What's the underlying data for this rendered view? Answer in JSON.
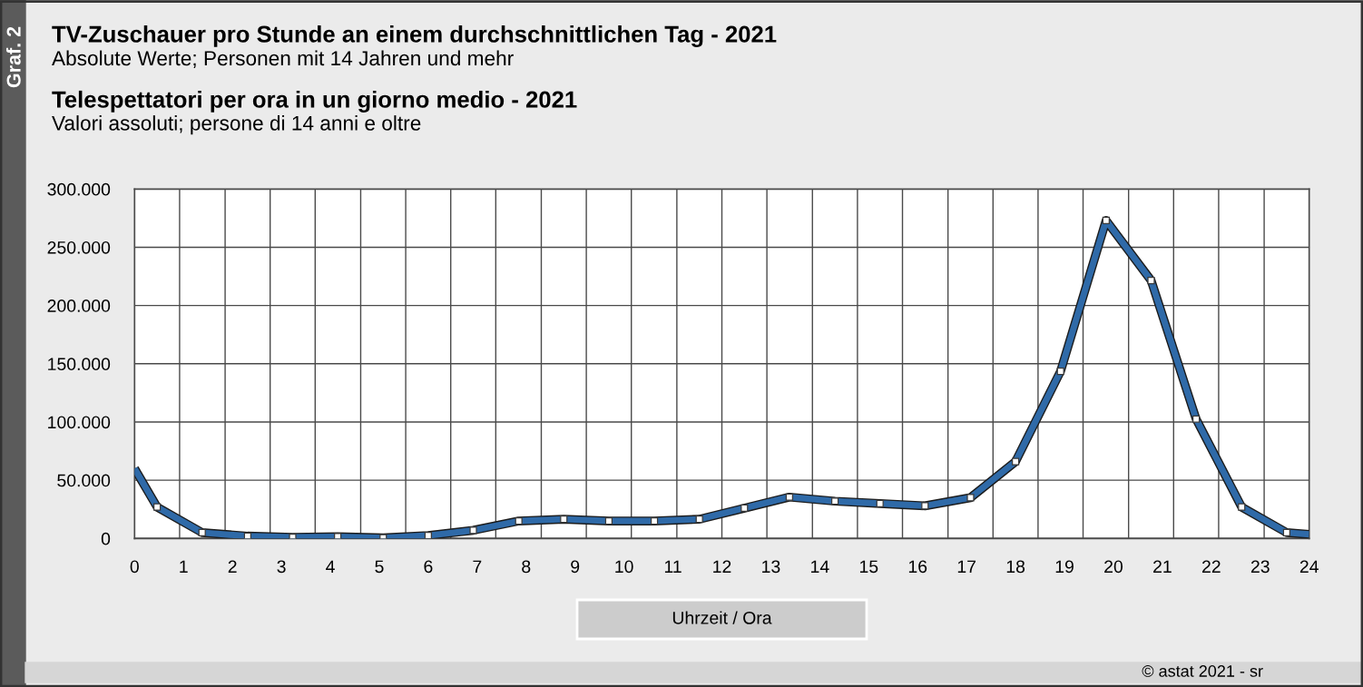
{
  "chart_data": {
    "type": "line",
    "title": "TV-Zuschauer pro Stunde an einem durchschnittlichen Tag - 2021",
    "subtitle": "Absolute Werte; Personen mit 14 Jahren und mehr",
    "xlabel": "Uhrzeit / Ora",
    "annotations": [
      "Graf. 2",
      "Telespettatori per ora in un giorno medio - 2021",
      "Valori assoluti; persone di 14 anni e oltre",
      "© astat 2021 - sr"
    ],
    "series": [
      {
        "color": "#2f6aa8",
        "x": [
          0,
          0.46,
          1.38,
          2.31,
          3.23,
          4.15,
          5.08,
          6.0,
          6.92,
          7.85,
          8.77,
          9.69,
          10.62,
          11.54,
          12.46,
          13.38,
          14.31,
          15.23,
          16.15,
          17.08,
          18.0,
          18.92,
          19.85,
          20.77,
          21.69,
          22.62,
          23.54,
          24
        ],
        "values": [
          60000,
          27000,
          5000,
          2000,
          1000,
          1500,
          500,
          2500,
          7000,
          15000,
          16500,
          15000,
          15000,
          16500,
          26000,
          35500,
          32000,
          30000,
          28000,
          35000,
          66000,
          143500,
          273000,
          221500,
          102500,
          27000,
          5000,
          3500
        ]
      }
    ],
    "xlim": [
      0,
      24
    ],
    "xticks": [
      0,
      {
        "value": 0.92,
        "label": null
      },
      1,
      {
        "value": 1.85,
        "label": null
      },
      2,
      {
        "value": 2.77,
        "label": null
      },
      3,
      {
        "value": 3.69,
        "label": null
      },
      4,
      {
        "value": 4.62,
        "label": null
      },
      5,
      {
        "value": 5.54,
        "label": null
      },
      6,
      {
        "value": 6.46,
        "label": null
      },
      7,
      {
        "value": 7.38,
        "label": null
      },
      8,
      {
        "value": 8.31,
        "label": null
      },
      9,
      {
        "value": 9.23,
        "label": null
      },
      10,
      {
        "value": 10.15,
        "label": null
      },
      11,
      {
        "value": 11.08,
        "label": null
      },
      12,
      {
        "value": 12,
        "label": null
      },
      {
        "value": 12.92,
        "label": null
      },
      13,
      {
        "value": 13.85,
        "label": null
      },
      14,
      {
        "value": 14.77,
        "label": null
      },
      15,
      {
        "value": 15.69,
        "label": null
      },
      16,
      {
        "value": 16.62,
        "label": null
      },
      17,
      {
        "value": 17.54,
        "label": null
      },
      18,
      {
        "value": 18.46,
        "label": null
      },
      19,
      {
        "value": 19.38,
        "label": null
      },
      20,
      {
        "value": 20.31,
        "label": null
      },
      21,
      {
        "value": 21.23,
        "label": null
      },
      22,
      {
        "value": 22.15,
        "label": null
      },
      23,
      {
        "value": 23.08,
        "label": null
      },
      24
    ],
    "ylim": [
      0,
      300000
    ],
    "yticks": [
      0,
      {
        "value": 50000,
        "label": "50.000"
      },
      {
        "value": 100000,
        "label": "100.000"
      },
      {
        "value": 150000,
        "label": "150.000"
      },
      {
        "value": 200000,
        "label": "200.000"
      },
      {
        "value": 250000,
        "label": "250.000"
      },
      {
        "value": 300000,
        "label": "300.000"
      }
    ],
    "grid": true,
    "marker": "square",
    "line_style": "solid"
  }
}
